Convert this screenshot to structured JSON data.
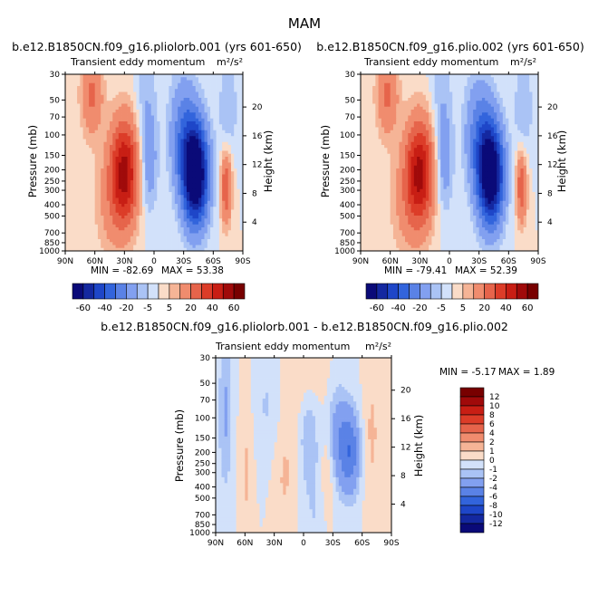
{
  "page_title": "MAM",
  "colors": {
    "cmap12": [
      "#0a0a78",
      "#1428a0",
      "#1e46c8",
      "#3264dc",
      "#5a82e6",
      "#82a0f0",
      "#aac3f5",
      "#d2e1fa",
      "#fadcc8",
      "#f5b496",
      "#f08c6e",
      "#e6644b",
      "#dc3c28",
      "#c81e14",
      "#a00a0a",
      "#780000"
    ],
    "cmap14": [
      "#0a0a78",
      "#1428a0",
      "#1e46c8",
      "#3264dc",
      "#5a82e6",
      "#82a0f0",
      "#aac3f5",
      "#d2e1fa",
      "#fadcc8",
      "#f5b496",
      "#f08c6e",
      "#e6644b",
      "#dc3c28",
      "#c81e14",
      "#a00a0a",
      "#780000"
    ]
  },
  "chart_data": [
    {
      "id": "panel1",
      "type": "heatmap",
      "title": "b.e12.B1850CN.f09_g16.pliolorb.001 (yrs 601-650)",
      "subtitle_left": "Transient eddy momentum",
      "units": "m²/s²",
      "xlabel": "",
      "ylabel": "Pressure (mb)",
      "ylabel_right": "Height (km)",
      "x_ticks": [
        "90N",
        "60N",
        "30N",
        "0",
        "30S",
        "60S",
        "90S"
      ],
      "x_range": [
        90,
        -90
      ],
      "pressure_ticks": [
        "30",
        "50",
        "70",
        "100",
        "150",
        "200",
        "250",
        "300",
        "400",
        "500",
        "700",
        "850",
        "1000"
      ],
      "pressure_values": [
        30,
        50,
        70,
        100,
        150,
        200,
        250,
        300,
        400,
        500,
        700,
        850,
        1000
      ],
      "height_ticks": [
        "4",
        "8",
        "12",
        "16",
        "20"
      ],
      "height_values": [
        4,
        8,
        12,
        16,
        20
      ],
      "min_label": "MIN = -82.69",
      "max_label": "MAX = 53.38",
      "colorbar_labels": [
        "-60",
        "-40",
        "-20",
        "-5",
        "5",
        "20",
        "40",
        "60"
      ],
      "features": [
        {
          "lat": 30,
          "p": 210,
          "value": 53,
          "wlat": 10,
          "wlogp": 0.32
        },
        {
          "lat": 63,
          "p": 45,
          "value": 22,
          "wlat": 8,
          "wlogp": 0.25
        },
        {
          "lat": 45,
          "p": 400,
          "value": 10,
          "wlat": 12,
          "wlogp": 0.35
        },
        {
          "lat": -42,
          "p": 220,
          "value": -83,
          "wlat": 9,
          "wlogp": 0.3
        },
        {
          "lat": -30,
          "p": 100,
          "value": -25,
          "wlat": 10,
          "wlogp": 0.35
        },
        {
          "lat": 5,
          "p": 180,
          "value": -15,
          "wlat": 6,
          "wlogp": 0.3
        },
        {
          "lat": -73,
          "p": 280,
          "value": 30,
          "wlat": 4,
          "wlogp": 0.22
        },
        {
          "lat": -75,
          "p": 60,
          "value": -10,
          "wlat": 7,
          "wlogp": 0.3
        },
        {
          "lat": 8,
          "p": 50,
          "value": -8,
          "wlat": 8,
          "wlogp": 0.4
        }
      ]
    },
    {
      "id": "panel2",
      "type": "heatmap",
      "title": "b.e12.B1850CN.f09_g16.plio.002 (yrs 601-650)",
      "subtitle_left": "Transient eddy momentum",
      "units": "m²/s²",
      "xlabel": "",
      "ylabel": "Pressure (mb)",
      "ylabel_right": "Height (km)",
      "x_ticks": [
        "90N",
        "60N",
        "30N",
        "0",
        "30S",
        "60S",
        "90S"
      ],
      "x_range": [
        90,
        -90
      ],
      "pressure_ticks": [
        "30",
        "50",
        "70",
        "100",
        "150",
        "200",
        "250",
        "300",
        "400",
        "500",
        "700",
        "850",
        "1000"
      ],
      "pressure_values": [
        30,
        50,
        70,
        100,
        150,
        200,
        250,
        300,
        400,
        500,
        700,
        850,
        1000
      ],
      "height_ticks": [
        "4",
        "8",
        "12",
        "16",
        "20"
      ],
      "height_values": [
        4,
        8,
        12,
        16,
        20
      ],
      "min_label": "MIN = -79.41",
      "max_label": "MAX = 52.39",
      "colorbar_labels": [
        "-60",
        "-40",
        "-20",
        "-5",
        "5",
        "20",
        "40",
        "60"
      ],
      "features": [
        {
          "lat": 30,
          "p": 210,
          "value": 52,
          "wlat": 10,
          "wlogp": 0.32
        },
        {
          "lat": 63,
          "p": 45,
          "value": 22,
          "wlat": 8,
          "wlogp": 0.25
        },
        {
          "lat": 45,
          "p": 400,
          "value": 10,
          "wlat": 12,
          "wlogp": 0.35
        },
        {
          "lat": -42,
          "p": 220,
          "value": -79,
          "wlat": 9,
          "wlogp": 0.3
        },
        {
          "lat": -30,
          "p": 100,
          "value": -24,
          "wlat": 10,
          "wlogp": 0.35
        },
        {
          "lat": 5,
          "p": 180,
          "value": -14,
          "wlat": 6,
          "wlogp": 0.3
        },
        {
          "lat": -73,
          "p": 280,
          "value": 28,
          "wlat": 4,
          "wlogp": 0.22
        },
        {
          "lat": -75,
          "p": 60,
          "value": -10,
          "wlat": 7,
          "wlogp": 0.3
        },
        {
          "lat": 8,
          "p": 50,
          "value": -8,
          "wlat": 8,
          "wlogp": 0.4
        }
      ]
    },
    {
      "id": "panel3",
      "type": "heatmap",
      "title": "b.e12.B1850CN.f09_g16.pliolorb.001 - b.e12.B1850CN.f09_g16.plio.002",
      "subtitle_left": "Transient eddy momentum",
      "units": "m²/s²",
      "xlabel": "",
      "ylabel": "Pressure (mb)",
      "ylabel_right": "Height (km)",
      "x_ticks": [
        "90N",
        "60N",
        "30N",
        "0",
        "30S",
        "60S",
        "90S"
      ],
      "x_range": [
        90,
        -90
      ],
      "pressure_ticks": [
        "30",
        "50",
        "70",
        "100",
        "150",
        "200",
        "250",
        "300",
        "400",
        "500",
        "700",
        "850",
        "1000"
      ],
      "pressure_values": [
        30,
        50,
        70,
        100,
        150,
        200,
        250,
        300,
        400,
        500,
        700,
        850,
        1000
      ],
      "height_ticks": [
        "4",
        "8",
        "12",
        "16",
        "20"
      ],
      "height_values": [
        4,
        8,
        12,
        16,
        20
      ],
      "min_label": "MIN =   -5.17",
      "max_label": "MAX =    1.89",
      "colorbar_labels": [
        "12",
        "10",
        "8",
        "6",
        "4",
        "2",
        "1",
        "0",
        "-1",
        "-2",
        "-4",
        "-6",
        "-8",
        "-10",
        "-12"
      ],
      "colorbar_levels": [
        -12,
        -10,
        -8,
        -6,
        -4,
        -2,
        -1,
        0,
        1,
        2,
        4,
        6,
        8,
        10,
        12
      ],
      "features": [
        {
          "lat": -48,
          "p": 200,
          "value": -5.2,
          "wlat": 7,
          "wlogp": 0.25
        },
        {
          "lat": -35,
          "p": 150,
          "value": -3.2,
          "wlat": 8,
          "wlogp": 0.3
        },
        {
          "lat": -5,
          "p": 130,
          "value": -1.8,
          "wlat": 7,
          "wlogp": 0.3
        },
        {
          "lat": 80,
          "p": 90,
          "value": -2.2,
          "wlat": 5,
          "wlogp": 0.5
        },
        {
          "lat": 20,
          "p": 260,
          "value": 1.3,
          "wlat": 9,
          "wlogp": 0.45
        },
        {
          "lat": 58,
          "p": 280,
          "value": 1.2,
          "wlat": 5,
          "wlogp": 0.5
        },
        {
          "lat": -25,
          "p": 320,
          "value": 1.9,
          "wlat": 6,
          "wlogp": 0.35
        },
        {
          "lat": -70,
          "p": 140,
          "value": 1.2,
          "wlat": 6,
          "wlogp": 0.45
        },
        {
          "lat": 35,
          "p": 80,
          "value": -1.2,
          "wlat": 12,
          "wlogp": 0.4
        },
        {
          "lat": -15,
          "p": 600,
          "value": -1.1,
          "wlat": 12,
          "wlogp": 0.4
        },
        {
          "lat": 0,
          "p": 40,
          "value": 1.1,
          "wlat": 15,
          "wlogp": 0.3
        }
      ]
    }
  ]
}
